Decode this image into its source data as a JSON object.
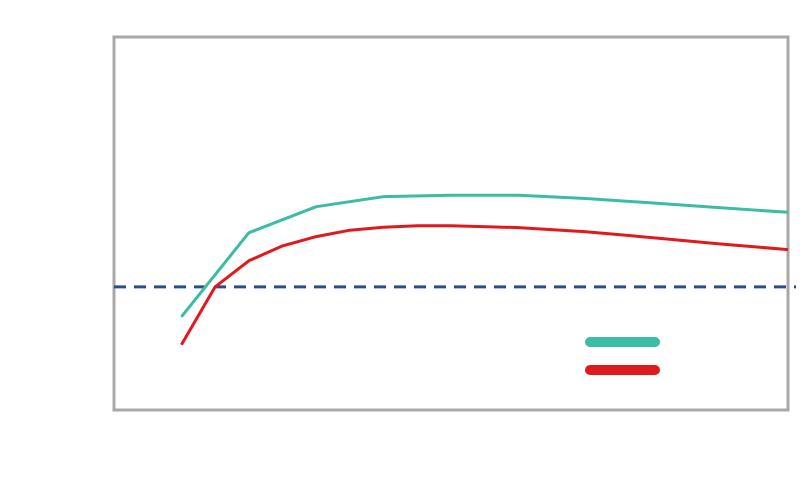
{
  "chart_data": {
    "type": "line",
    "title": "",
    "xlabel": "",
    "ylabel": "",
    "xlim": [
      0,
      10
    ],
    "ylim": [
      0,
      10
    ],
    "grid": false,
    "legend_position": "bottom-right",
    "reference_line": {
      "y": 3.3,
      "style": "dashed",
      "color": "#2a4d8f"
    },
    "series": [
      {
        "color": "#3dbca4",
        "x": [
          1,
          2,
          3,
          4,
          5,
          6,
          7,
          8,
          9,
          10
        ],
        "y": [
          2.5,
          4.75,
          5.45,
          5.72,
          5.76,
          5.76,
          5.67,
          5.55,
          5.42,
          5.3
        ]
      },
      {
        "color": "#e0191e",
        "x": [
          1,
          1.5,
          2,
          2.5,
          3,
          3.5,
          4,
          4.5,
          5,
          6,
          7,
          8,
          9,
          10
        ],
        "y": [
          1.75,
          3.3,
          4.0,
          4.4,
          4.65,
          4.82,
          4.9,
          4.94,
          4.94,
          4.89,
          4.78,
          4.62,
          4.45,
          4.3
        ]
      }
    ]
  }
}
